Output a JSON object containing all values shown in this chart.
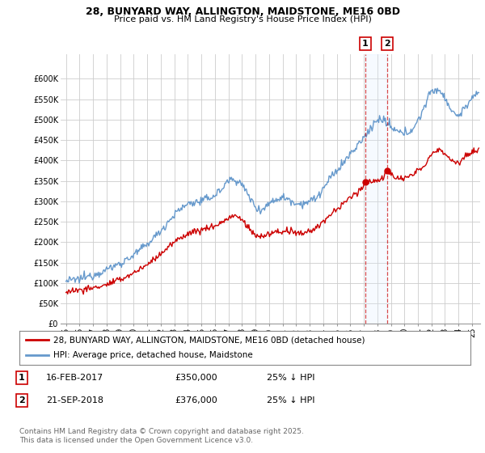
{
  "title": "28, BUNYARD WAY, ALLINGTON, MAIDSTONE, ME16 0BD",
  "subtitle": "Price paid vs. HM Land Registry's House Price Index (HPI)",
  "background_color": "#ffffff",
  "grid_color": "#cccccc",
  "hpi_color": "#6699cc",
  "price_color": "#cc0000",
  "shade_color": "#ddeeff",
  "marker1_date": 2017.12,
  "marker2_date": 2018.73,
  "marker1_price": 350000,
  "marker2_price": 376000,
  "transaction1": "16-FEB-2017",
  "transaction2": "21-SEP-2018",
  "pct1": "25% ↓ HPI",
  "pct2": "25% ↓ HPI",
  "legend1": "28, BUNYARD WAY, ALLINGTON, MAIDSTONE, ME16 0BD (detached house)",
  "legend2": "HPI: Average price, detached house, Maidstone",
  "footer": "Contains HM Land Registry data © Crown copyright and database right 2025.\nThis data is licensed under the Open Government Licence v3.0.",
  "ylim": [
    0,
    660000
  ],
  "xlim_start": 1994.6,
  "xlim_end": 2025.6
}
